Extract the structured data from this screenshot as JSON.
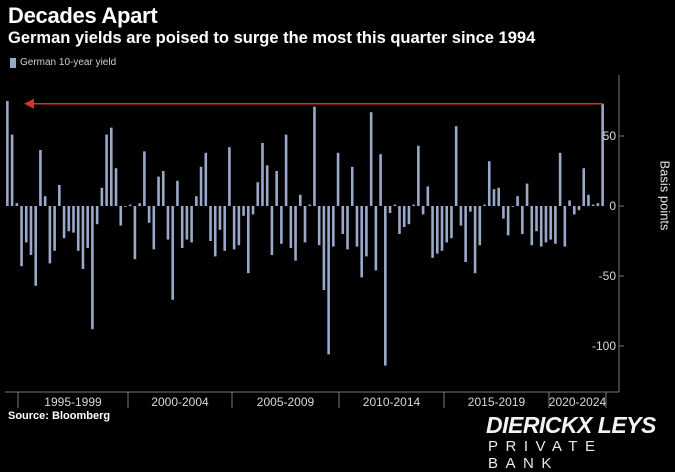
{
  "header": {
    "title": "Decades Apart",
    "subtitle": "German yields are poised to surge the most this quarter since 1994"
  },
  "legend": {
    "label": "German 10-year yield",
    "color": "#9aa8c9"
  },
  "footer": {
    "source": "Source: Bloomberg"
  },
  "brand": {
    "name": "DIERICKX LEYS",
    "tagline": "PRIVATE BANK"
  },
  "colors": {
    "bar": "#9aa8c9",
    "arrow": "#d9322e",
    "axis": "#7a7a7a",
    "text": "#d9d9d9"
  },
  "chart_data": {
    "type": "bar",
    "ylabel": "Basis points",
    "ylim": [
      -130,
      82
    ],
    "yticks": [
      50,
      0,
      -50,
      -100
    ],
    "grid": false,
    "legend_position": "top-left",
    "periods": [
      "1995-1999",
      "2000-2004",
      "2005-2009",
      "2010-2014",
      "2015-2019",
      "2020-2024"
    ],
    "annotation": "red arrow pointing left from the latest bar across to the 1994 bar",
    "series": [
      {
        "name": "German 10-year yield",
        "values": [
          75,
          51,
          2,
          -43,
          -26,
          -35,
          -57,
          40,
          7,
          -41,
          -32,
          15,
          -23,
          -18,
          -19,
          -32,
          -45,
          -30,
          -88,
          -13,
          13,
          51,
          56,
          27,
          -14,
          0,
          1,
          -38,
          2,
          39,
          -12,
          -31,
          21,
          25,
          -24,
          -67,
          18,
          -30,
          -24,
          -26,
          7,
          28,
          38,
          -25,
          -36,
          -17,
          -32,
          42,
          -31,
          -28,
          -7,
          -48,
          -6,
          17,
          45,
          29,
          -35,
          25,
          -27,
          51,
          -30,
          -39,
          8,
          -26,
          1,
          71,
          -28,
          -60,
          -106,
          -29,
          38,
          -20,
          -31,
          28,
          -29,
          -51,
          -36,
          67,
          -46,
          37,
          -114,
          -5,
          1,
          -20,
          -15,
          -13,
          1,
          43,
          -6,
          14,
          -37,
          -34,
          -32,
          -26,
          -23,
          57,
          -14,
          -40,
          -4,
          -48,
          -28,
          1,
          32,
          12,
          13,
          -9,
          -21,
          0,
          7,
          -20,
          16,
          -28,
          -18,
          -29,
          -26,
          -24,
          -27,
          38,
          -29,
          4,
          -6,
          -3,
          27,
          8,
          1,
          2,
          73
        ]
      }
    ]
  }
}
